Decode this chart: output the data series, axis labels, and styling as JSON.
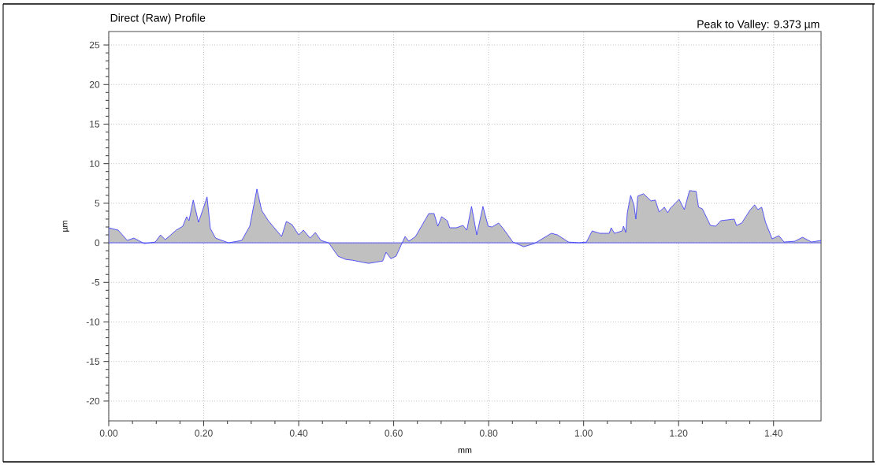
{
  "chart_data": {
    "type": "area",
    "title": "Direct (Raw) Profile",
    "xlabel": "mm",
    "ylabel": "µm",
    "annotations": [
      "Peak to Valley: 9.373 µm"
    ],
    "x": [
      0,
      0.02,
      0.039,
      0.053,
      0.075,
      0.098,
      0.109,
      0.119,
      0.142,
      0.156,
      0.164,
      0.169,
      0.178,
      0.189,
      0.2,
      0.207,
      0.214,
      0.225,
      0.252,
      0.28,
      0.297,
      0.312,
      0.322,
      0.336,
      0.364,
      0.374,
      0.386,
      0.4,
      0.41,
      0.424,
      0.435,
      0.447,
      0.463,
      0.483,
      0.499,
      0.513,
      0.547,
      0.577,
      0.584,
      0.594,
      0.605,
      0.624,
      0.632,
      0.646,
      0.674,
      0.685,
      0.693,
      0.701,
      0.713,
      0.718,
      0.732,
      0.746,
      0.754,
      0.764,
      0.775,
      0.788,
      0.799,
      0.807,
      0.821,
      0.832,
      0.851,
      0.874,
      0.896,
      0.932,
      0.945,
      0.968,
      0.99,
      1.006,
      1.018,
      1.034,
      1.054,
      1.058,
      1.065,
      1.081,
      1.084,
      1.089,
      1.092,
      1.099,
      1.106,
      1.11,
      1.114,
      1.126,
      1.142,
      1.151,
      1.159,
      1.17,
      1.177,
      1.183,
      1.201,
      1.212,
      1.223,
      1.237,
      1.242,
      1.25,
      1.267,
      1.278,
      1.289,
      1.317,
      1.322,
      1.333,
      1.35,
      1.36,
      1.367,
      1.375,
      1.383,
      1.397,
      1.411,
      1.422,
      1.445,
      1.461,
      1.48,
      1.5
    ],
    "series": [
      {
        "color": "#c0c0c0",
        "values": [
          1.9,
          1.6,
          0.3,
          0.6,
          -0.1,
          0.1,
          1.0,
          0.4,
          1.6,
          2.1,
          3.3,
          2.8,
          5.4,
          2.6,
          4.5,
          5.8,
          1.8,
          0.6,
          0.0,
          0.3,
          2.1,
          6.8,
          4.1,
          2.8,
          0.8,
          2.7,
          2.3,
          1.0,
          1.6,
          0.6,
          1.3,
          0.3,
          0.0,
          -1.7,
          -2.1,
          -2.2,
          -2.6,
          -2.3,
          -1.2,
          -2.0,
          -1.7,
          0.8,
          0.2,
          0.8,
          3.7,
          3.7,
          2.1,
          3.3,
          2.8,
          1.9,
          1.9,
          2.2,
          1.6,
          4.6,
          1.0,
          4.6,
          2.1,
          2.0,
          2.5,
          1.7,
          0.1,
          -0.5,
          -0.1,
          1.2,
          1.0,
          0.1,
          0.0,
          0.1,
          1.5,
          1.2,
          1.2,
          1.9,
          1.2,
          1.5,
          2.1,
          1.3,
          3.8,
          6.0,
          4.8,
          3.0,
          5.9,
          6.2,
          5.3,
          5.4,
          3.9,
          4.5,
          3.8,
          4.4,
          5.5,
          4.2,
          6.6,
          6.5,
          4.5,
          4.3,
          2.2,
          2.1,
          2.8,
          3.0,
          2.2,
          2.5,
          4.1,
          4.8,
          4.2,
          4.5,
          2.6,
          0.5,
          0.9,
          0.1,
          0.2,
          0.7,
          0.1,
          0.3
        ]
      }
    ],
    "xlim": [
      0,
      1.5
    ],
    "ylim": [
      -22.5,
      26.7
    ],
    "xticks": [
      {
        "value": 0,
        "label": "0.00"
      },
      {
        "value": 0.2,
        "label": "0.20"
      },
      {
        "value": 0.4,
        "label": "0.40"
      },
      {
        "value": 0.6,
        "label": "0.60"
      },
      {
        "value": 0.8,
        "label": "0.80"
      },
      {
        "value": 1.0,
        "label": "1.00"
      },
      {
        "value": 1.2,
        "label": "1.20"
      },
      {
        "value": 1.4,
        "label": "1.40"
      }
    ],
    "yticks": [
      -20,
      -15,
      -10,
      -5,
      0,
      5,
      10,
      15,
      20,
      25
    ],
    "grid": true
  }
}
